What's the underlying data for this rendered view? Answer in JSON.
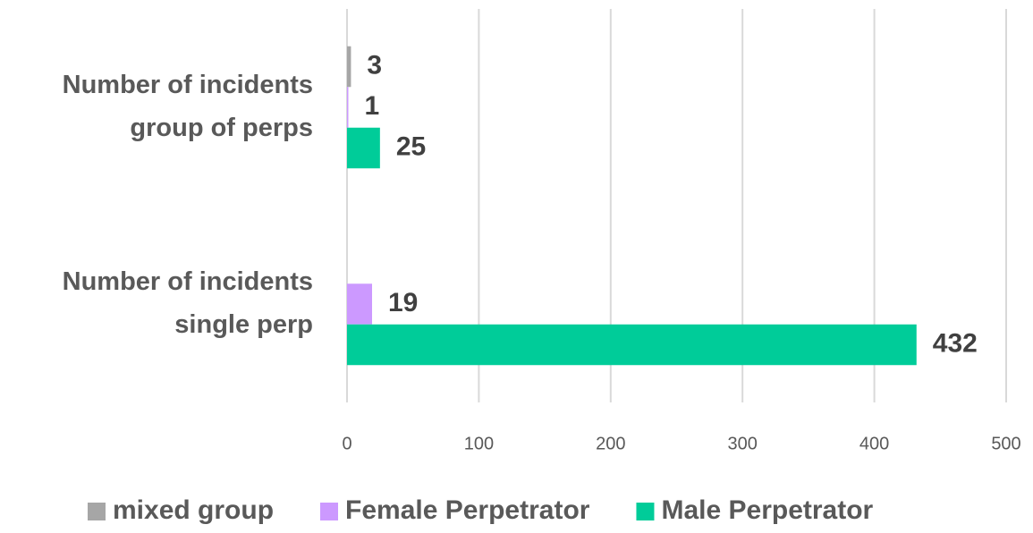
{
  "chart_data": {
    "type": "barh",
    "categories": [
      "Number of incidents group of perps",
      "Number of incidents single perp"
    ],
    "series": [
      {
        "name": "mixed group",
        "color": "#a6a6a6",
        "values": [
          3,
          null
        ]
      },
      {
        "name": "Female Perpetrator",
        "color": "#cc99ff",
        "values": [
          1,
          19
        ]
      },
      {
        "name": "Male Perpetrator",
        "color": "#00cc99",
        "values": [
          25,
          432
        ]
      }
    ],
    "xlim": [
      0,
      500
    ],
    "xticks": [
      0,
      100,
      200,
      300,
      400,
      500
    ],
    "grid": true,
    "legend": "bottom"
  }
}
